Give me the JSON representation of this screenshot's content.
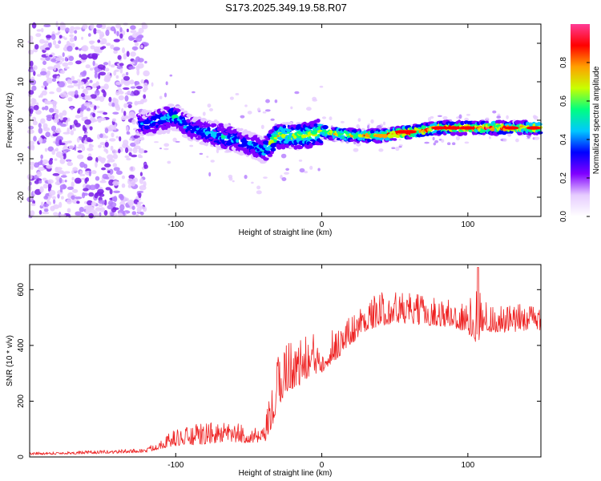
{
  "figure_title": "S173.2025.349.19.58.R07",
  "chart_data": [
    {
      "type": "heatmap",
      "xlabel": "Height of straight line (km)",
      "ylabel": "Frequency (Hz)",
      "xlim": [
        -200,
        150
      ],
      "ylim": [
        -25,
        25
      ],
      "x_ticks": [
        -100,
        0,
        100
      ],
      "y_ticks": [
        -20,
        -10,
        0,
        10,
        20
      ],
      "colorbar": {
        "label": "Normalized spectral amplitude",
        "range": [
          0,
          1
        ],
        "ticks": [
          0.0,
          0.2,
          0.4,
          0.6,
          0.8
        ],
        "colors": [
          "#ffffff",
          "#e6ccff",
          "#8000ff",
          "#0000ff",
          "#00c8ff",
          "#00ff80",
          "#c8ff00",
          "#ffa000",
          "#ff0000",
          "#ff3c96"
        ]
      },
      "ridge": {
        "x": [
          -120,
          -110,
          -100,
          -90,
          -80,
          -70,
          -60,
          -50,
          -45,
          -40,
          -35,
          -30,
          -20,
          -10,
          0,
          20,
          40,
          60,
          80,
          100,
          120,
          150
        ],
        "frequency": [
          -1,
          0,
          1,
          -2,
          -3,
          -4,
          -5,
          -6,
          -7,
          -8,
          -6,
          -4,
          -4,
          -4,
          -3,
          -4,
          -4,
          -3,
          -2,
          -2,
          -2,
          -2
        ],
        "amplitude": [
          0.35,
          0.4,
          0.45,
          0.35,
          0.4,
          0.45,
          0.4,
          0.35,
          0.4,
          0.45,
          0.55,
          0.6,
          0.6,
          0.62,
          0.65,
          0.7,
          0.75,
          0.85,
          0.8,
          0.8,
          0.78,
          0.8
        ]
      },
      "noise_region_x": [
        -200,
        -120
      ]
    },
    {
      "type": "line",
      "xlabel": "Height of straight line (km)",
      "ylabel": "SNR (10 * v/v)",
      "xlim": [
        -200,
        150
      ],
      "ylim": [
        0,
        690
      ],
      "x_ticks": [
        -100,
        0,
        100
      ],
      "y_ticks": [
        0,
        200,
        400,
        600
      ],
      "series": [
        {
          "name": "SNR",
          "color": "#ee2222",
          "x": [
            -200,
            -150,
            -120,
            -110,
            -100,
            -90,
            -80,
            -70,
            -60,
            -50,
            -40,
            -35,
            -30,
            -25,
            -20,
            -15,
            -10,
            0,
            10,
            20,
            30,
            40,
            50,
            60,
            70,
            80,
            90,
            100,
            107,
            110,
            120,
            130,
            140,
            150
          ],
          "base": [
            10,
            15,
            20,
            40,
            55,
            60,
            65,
            70,
            70,
            65,
            60,
            120,
            220,
            280,
            290,
            300,
            320,
            340,
            380,
            430,
            480,
            500,
            510,
            505,
            500,
            495,
            490,
            470,
            460,
            480,
            470,
            470,
            480,
            480
          ],
          "spread": [
            10,
            12,
            15,
            40,
            60,
            70,
            80,
            70,
            70,
            60,
            50,
            150,
            200,
            200,
            180,
            170,
            160,
            150,
            120,
            110,
            110,
            120,
            120,
            110,
            110,
            100,
            110,
            110,
            230,
            110,
            100,
            100,
            100,
            100
          ]
        }
      ]
    }
  ]
}
